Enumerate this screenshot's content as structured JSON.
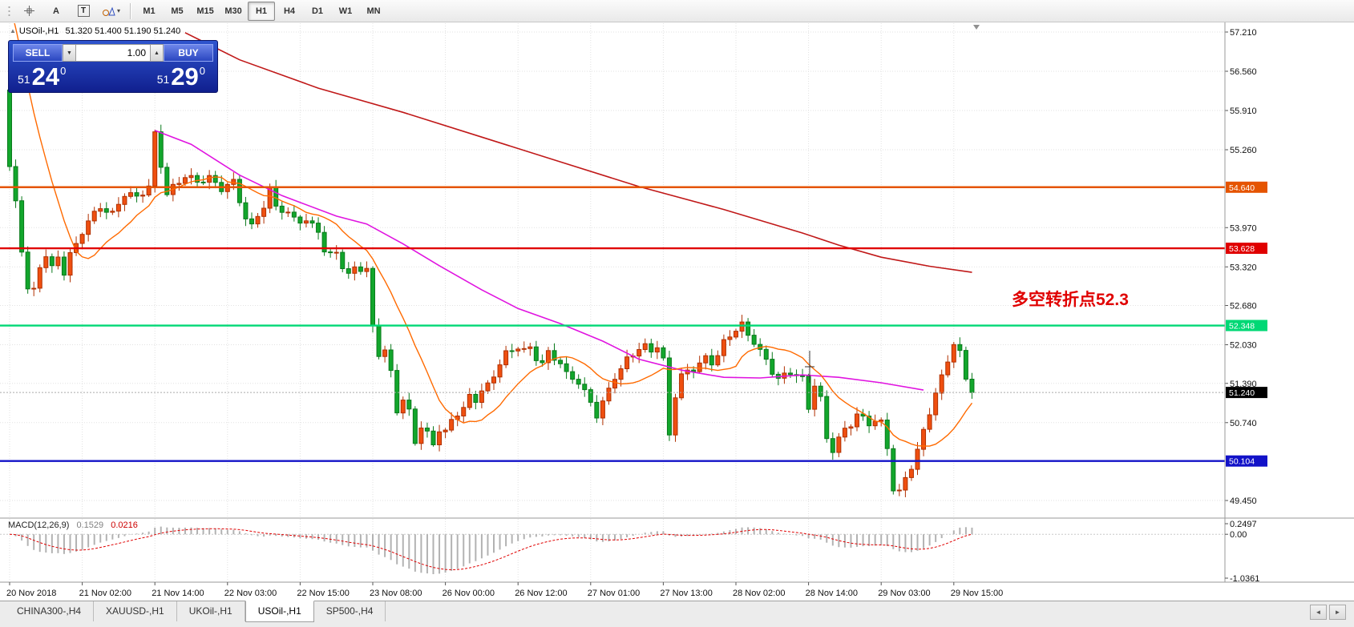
{
  "toolbar": {
    "tools": [
      {
        "name": "crosshair-tool",
        "label": ""
      },
      {
        "name": "text-tool",
        "label": "A"
      },
      {
        "name": "label-tool",
        "label": "T"
      },
      {
        "name": "shapes-tool",
        "label": ""
      }
    ],
    "timeframes": [
      "M1",
      "M5",
      "M15",
      "M30",
      "H1",
      "H4",
      "D1",
      "W1",
      "MN"
    ],
    "active_timeframe": "H1"
  },
  "symbol_bar": {
    "collapse_icon": "▲",
    "symbol": "USOil-,H1",
    "ohlc": "51.320 51.400 51.190 51.240"
  },
  "trade_panel": {
    "sell_label": "SELL",
    "buy_label": "BUY",
    "volume": "1.00",
    "spin_down_icon": "▼",
    "spin_up_icon": "▲",
    "sell_price": {
      "small": "51",
      "big": "24",
      "sup": "0"
    },
    "buy_price": {
      "small": "51",
      "big": "29",
      "sup": "0"
    }
  },
  "annotation": {
    "text": "多空转折点52.3",
    "color": "#e00000"
  },
  "price_axis": {
    "labels": [
      "57.210",
      "56.560",
      "55.910",
      "55.260",
      "53.970",
      "53.320",
      "52.680",
      "52.030",
      "51.390",
      "50.740",
      "49.450"
    ]
  },
  "time_axis": {
    "labels": [
      "20 Nov 2018",
      "21 Nov 02:00",
      "21 Nov 14:00",
      "22 Nov 03:00",
      "22 Nov 15:00",
      "23 Nov 08:00",
      "26 Nov 00:00",
      "26 Nov 12:00",
      "27 Nov 01:00",
      "27 Nov 13:00",
      "28 Nov 02:00",
      "28 Nov 14:00",
      "29 Nov 03:00",
      "29 Nov 15:00"
    ]
  },
  "levels": [
    {
      "label": "54.640",
      "color": "#e55400"
    },
    {
      "label": "53.628",
      "color": "#e00000"
    },
    {
      "label": "52.348",
      "color": "#00d875"
    },
    {
      "label": "50.104",
      "color": "#1212c8"
    }
  ],
  "current_price": {
    "label": "51.240",
    "color": "#000000"
  },
  "macd_panel": {
    "name": "MACD(12,26,9)",
    "value_main": "0.1529",
    "value_signal": "0.0216",
    "axis_labels": [
      "0.2497",
      "0.00",
      "-1.0361"
    ],
    "max": 0.2497,
    "min": -1.0361
  },
  "tabs": {
    "items": [
      "CHINA300-,H4",
      "XAUUSD-,H1",
      "UKOil-,H1",
      "USOil-,H1",
      "SP500-,H4"
    ],
    "active_index": 3,
    "scroll_left_icon": "◄",
    "scroll_right_icon": "►"
  },
  "chart_data": {
    "type": "candlestick",
    "symbol": "USOil-,H1",
    "bars": 160,
    "last_price": 51.24,
    "visible_price_range": [
      49.14,
      57.35
    ],
    "horizontal_levels": [
      54.64,
      53.628,
      52.348,
      50.104
    ],
    "price_path_anchors": [
      [
        0,
        56.25
      ],
      [
        1,
        54.95
      ],
      [
        2,
        54.35
      ],
      [
        3,
        53.6
      ],
      [
        4,
        53.0
      ],
      [
        5,
        52.95
      ],
      [
        6,
        53.35
      ],
      [
        7,
        53.55
      ],
      [
        8,
        53.3
      ],
      [
        9,
        53.45
      ],
      [
        10,
        53.2
      ],
      [
        11,
        53.5
      ],
      [
        12,
        53.65
      ],
      [
        13,
        53.9
      ],
      [
        14,
        54.1
      ],
      [
        16,
        54.35
      ],
      [
        18,
        54.2
      ],
      [
        20,
        54.5
      ],
      [
        22,
        54.45
      ],
      [
        24,
        54.65
      ],
      [
        25,
        55.55
      ],
      [
        26,
        55.05
      ],
      [
        27,
        54.55
      ],
      [
        28,
        54.65
      ],
      [
        30,
        54.8
      ],
      [
        32,
        54.7
      ],
      [
        34,
        54.8
      ],
      [
        36,
        54.65
      ],
      [
        38,
        54.75
      ],
      [
        40,
        54.1
      ],
      [
        41,
        53.95
      ],
      [
        42,
        54.15
      ],
      [
        43,
        54.3
      ],
      [
        44,
        54.6
      ],
      [
        45,
        54.35
      ],
      [
        46,
        54.3
      ],
      [
        48,
        54.15
      ],
      [
        50,
        54.05
      ],
      [
        52,
        53.9
      ],
      [
        53,
        53.55
      ],
      [
        54,
        53.5
      ],
      [
        55,
        53.6
      ],
      [
        56,
        53.35
      ],
      [
        57,
        53.2
      ],
      [
        58,
        53.35
      ],
      [
        59,
        53.3
      ],
      [
        60,
        53.25
      ],
      [
        61,
        52.3
      ],
      [
        62,
        51.85
      ],
      [
        63,
        51.9
      ],
      [
        64,
        51.55
      ],
      [
        65,
        50.95
      ],
      [
        66,
        51.15
      ],
      [
        67,
        50.95
      ],
      [
        68,
        50.45
      ],
      [
        69,
        50.7
      ],
      [
        70,
        50.55
      ],
      [
        71,
        50.35
      ],
      [
        72,
        50.6
      ],
      [
        73,
        50.55
      ],
      [
        74,
        50.75
      ],
      [
        75,
        50.9
      ],
      [
        76,
        51.0
      ],
      [
        77,
        51.2
      ],
      [
        78,
        51.15
      ],
      [
        79,
        51.3
      ],
      [
        80,
        51.35
      ],
      [
        81,
        51.5
      ],
      [
        82,
        51.7
      ],
      [
        83,
        51.85
      ],
      [
        84,
        51.9
      ],
      [
        85,
        52.0
      ],
      [
        86,
        51.95
      ],
      [
        87,
        52.0
      ],
      [
        88,
        51.85
      ],
      [
        89,
        51.75
      ],
      [
        90,
        51.9
      ],
      [
        91,
        51.8
      ],
      [
        92,
        51.7
      ],
      [
        93,
        51.5
      ],
      [
        94,
        51.45
      ],
      [
        95,
        51.4
      ],
      [
        96,
        51.25
      ],
      [
        97,
        51.1
      ],
      [
        98,
        50.9
      ],
      [
        99,
        51.1
      ],
      [
        100,
        51.3
      ],
      [
        101,
        51.5
      ],
      [
        102,
        51.6
      ],
      [
        103,
        51.75
      ],
      [
        104,
        51.85
      ],
      [
        105,
        51.95
      ],
      [
        106,
        52.0
      ],
      [
        107,
        51.95
      ],
      [
        108,
        52.05
      ],
      [
        109,
        51.8
      ],
      [
        110,
        50.55
      ],
      [
        111,
        51.2
      ],
      [
        112,
        51.5
      ],
      [
        113,
        51.55
      ],
      [
        114,
        51.6
      ],
      [
        115,
        51.7
      ],
      [
        116,
        51.8
      ],
      [
        117,
        51.75
      ],
      [
        118,
        51.9
      ],
      [
        119,
        52.1
      ],
      [
        120,
        52.2
      ],
      [
        121,
        52.3
      ],
      [
        122,
        52.35
      ],
      [
        123,
        52.15
      ],
      [
        124,
        52.05
      ],
      [
        125,
        51.9
      ],
      [
        126,
        51.75
      ],
      [
        127,
        51.6
      ],
      [
        128,
        51.5
      ],
      [
        129,
        51.55
      ],
      [
        130,
        51.6
      ],
      [
        131,
        51.55
      ],
      [
        132,
        51.45
      ],
      [
        133,
        50.95
      ],
      [
        134,
        51.35
      ],
      [
        135,
        51.1
      ],
      [
        136,
        50.45
      ],
      [
        137,
        50.3
      ],
      [
        138,
        50.5
      ],
      [
        139,
        50.65
      ],
      [
        140,
        50.75
      ],
      [
        141,
        50.9
      ],
      [
        142,
        50.8
      ],
      [
        143,
        50.7
      ],
      [
        144,
        50.75
      ],
      [
        145,
        50.7
      ],
      [
        146,
        50.3
      ],
      [
        147,
        49.65
      ],
      [
        148,
        49.6
      ],
      [
        149,
        49.85
      ],
      [
        150,
        50.05
      ],
      [
        151,
        50.3
      ],
      [
        152,
        50.6
      ],
      [
        153,
        50.9
      ],
      [
        154,
        51.2
      ],
      [
        155,
        51.45
      ],
      [
        156,
        51.75
      ],
      [
        157,
        52.05
      ],
      [
        158,
        51.9
      ],
      [
        159,
        51.5
      ],
      [
        160,
        51.24
      ]
    ],
    "ma_long_anchors": [
      [
        29,
        57.2
      ],
      [
        38,
        56.75
      ],
      [
        51,
        56.28
      ],
      [
        65,
        55.88
      ],
      [
        78,
        55.47
      ],
      [
        91,
        55.06
      ],
      [
        104,
        54.65
      ],
      [
        118,
        54.27
      ],
      [
        131,
        53.88
      ],
      [
        137,
        53.68
      ],
      [
        144,
        53.48
      ],
      [
        152,
        53.33
      ],
      [
        159,
        53.23
      ]
    ],
    "ma_mid_anchors": [
      [
        24,
        55.58
      ],
      [
        30,
        55.35
      ],
      [
        38,
        54.84
      ],
      [
        45,
        54.5
      ],
      [
        54,
        54.16
      ],
      [
        59,
        54.03
      ],
      [
        65,
        53.7
      ],
      [
        71,
        53.34
      ],
      [
        78,
        52.94
      ],
      [
        84,
        52.63
      ],
      [
        91,
        52.38
      ],
      [
        98,
        52.09
      ],
      [
        104,
        51.79
      ],
      [
        111,
        51.61
      ],
      [
        118,
        51.49
      ],
      [
        124,
        51.48
      ],
      [
        131,
        51.53
      ],
      [
        137,
        51.49
      ],
      [
        144,
        51.4
      ],
      [
        151,
        51.28
      ]
    ],
    "ma_short_period": 12,
    "colors": {
      "up": "#ef4f10",
      "up_border": "#b03000",
      "down": "#12a62c",
      "down_border": "#0a7a1c",
      "ma_long": "#c01818",
      "ma_mid": "#e014e0",
      "ma_short": "#ff6a00",
      "macd_histogram": "#b2b2b2",
      "macd_signal": "#e00000"
    }
  }
}
